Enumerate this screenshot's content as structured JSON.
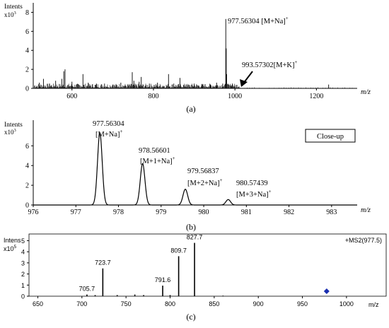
{
  "chart_data": [
    {
      "type": "line",
      "panel_label": "(a)",
      "ylabel": "Intents",
      "yunit": "x10",
      "yexp": "3",
      "xlabel": "m/z",
      "xlim": [
        505,
        1300
      ],
      "ylim": [
        0,
        9
      ],
      "xticks": [
        600,
        800,
        1000,
        1200
      ],
      "yticks": [
        0,
        2,
        4,
        6,
        8
      ],
      "peaks": [
        {
          "x": 520,
          "y": 0.6
        },
        {
          "x": 530,
          "y": 1.0
        },
        {
          "x": 545,
          "y": 0.5
        },
        {
          "x": 560,
          "y": 0.8
        },
        {
          "x": 575,
          "y": 1.0
        },
        {
          "x": 580,
          "y": 1.8
        },
        {
          "x": 583,
          "y": 2.0
        },
        {
          "x": 600,
          "y": 0.7
        },
        {
          "x": 627,
          "y": 1.5
        },
        {
          "x": 640,
          "y": 0.6
        },
        {
          "x": 660,
          "y": 0.5
        },
        {
          "x": 680,
          "y": 0.5
        },
        {
          "x": 700,
          "y": 0.4
        },
        {
          "x": 720,
          "y": 0.6
        },
        {
          "x": 748,
          "y": 1.7
        },
        {
          "x": 752,
          "y": 0.8
        },
        {
          "x": 765,
          "y": 0.7
        },
        {
          "x": 770,
          "y": 1.2
        },
        {
          "x": 790,
          "y": 0.5
        },
        {
          "x": 810,
          "y": 0.6
        },
        {
          "x": 837,
          "y": 1.5
        },
        {
          "x": 850,
          "y": 0.5
        },
        {
          "x": 865,
          "y": 1.1
        },
        {
          "x": 880,
          "y": 0.4
        },
        {
          "x": 900,
          "y": 0.5
        },
        {
          "x": 920,
          "y": 0.4
        },
        {
          "x": 940,
          "y": 0.4
        },
        {
          "x": 955,
          "y": 0.6
        },
        {
          "x": 970,
          "y": 0.5
        },
        {
          "x": 977.56,
          "y": 7.3
        },
        {
          "x": 978.57,
          "y": 4.2
        },
        {
          "x": 979.57,
          "y": 1.5
        },
        {
          "x": 990,
          "y": 0.3
        },
        {
          "x": 993.57,
          "y": 0.5
        },
        {
          "x": 1010,
          "y": 0.2
        },
        {
          "x": 1230,
          "y": 0.4
        }
      ],
      "annotations": [
        {
          "text": "977.56304 [M+Na]",
          "sup": "+"
        },
        {
          "text": "993.57302[M+K]",
          "sup": "+"
        }
      ]
    },
    {
      "type": "line",
      "panel_label": "(b)",
      "ylabel": "Intents",
      "yunit": "x10",
      "yexp": "3",
      "xlabel": "m/z",
      "xlim": [
        976,
        983.6
      ],
      "ylim": [
        0,
        8.6
      ],
      "xticks": [
        976,
        977,
        978,
        979,
        980,
        981,
        982,
        983
      ],
      "yticks": [
        0,
        2,
        4,
        6
      ],
      "series": [
        {
          "center": 977.56304,
          "height": 7.3
        },
        {
          "center": 978.56601,
          "height": 4.2
        },
        {
          "center": 979.56837,
          "height": 1.6
        },
        {
          "center": 980.57439,
          "height": 0.55
        }
      ],
      "inset_label": "Close-up",
      "annotations": [
        {
          "mass": "977.56304",
          "ion": "[M+Na]",
          "sup": "+"
        },
        {
          "mass": "978.56601",
          "ion": "[M+1+Na]",
          "sup": "+"
        },
        {
          "mass": "979.56837",
          "ion": "[M+2+Na]",
          "sup": "+"
        },
        {
          "mass": "980.57439",
          "ion": "[M+3+Na]",
          "sup": "+"
        }
      ]
    },
    {
      "type": "line",
      "panel_label": "(c)",
      "ylabel": "Intens",
      "yunit": "x10",
      "yexp": "5",
      "xlabel": "m/z",
      "xlim": [
        640,
        1045
      ],
      "ylim": [
        0,
        5.6
      ],
      "xticks": [
        650,
        700,
        750,
        800,
        850,
        900,
        950,
        1000
      ],
      "yticks": [
        0,
        1,
        2,
        3,
        4,
        5
      ],
      "legend": "+MS2(977.5)",
      "precursor_marker": 977.5,
      "peaks": [
        {
          "x": 705.7,
          "y": 0.15
        },
        {
          "x": 715,
          "y": 0.1
        },
        {
          "x": 723.7,
          "y": 2.5
        },
        {
          "x": 740,
          "y": 0.1
        },
        {
          "x": 760,
          "y": 0.15
        },
        {
          "x": 770,
          "y": 0.1
        },
        {
          "x": 791.6,
          "y": 0.95
        },
        {
          "x": 800,
          "y": 0.1
        },
        {
          "x": 809.7,
          "y": 3.6
        },
        {
          "x": 827.7,
          "y": 4.8
        },
        {
          "x": 860,
          "y": 0.05
        }
      ],
      "peak_labels": [
        {
          "x": 705.7,
          "text": "705.7"
        },
        {
          "x": 723.7,
          "text": "723.7"
        },
        {
          "x": 791.6,
          "text": "791.6"
        },
        {
          "x": 809.7,
          "text": "809.7"
        },
        {
          "x": 827.7,
          "text": "827.7"
        }
      ]
    }
  ]
}
